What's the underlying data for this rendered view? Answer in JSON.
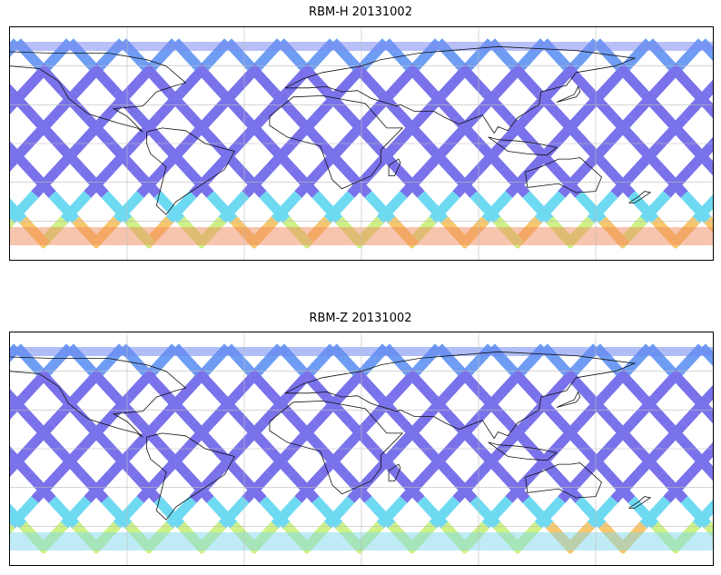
{
  "figure": {
    "panels": [
      {
        "title": "RBM-H 20131002",
        "colormap": "jet",
        "swath_color_hint": "blue-violet in tropics, red/orange near high latitudes"
      },
      {
        "title": "RBM-Z 20131002",
        "colormap": "jet",
        "swath_color_hint": "blue-violet dominant, cyan/yellow/orange patches in south"
      }
    ],
    "map": {
      "projection": "plate carree",
      "coastlines": true,
      "gridlines": true
    },
    "colors": {
      "low": "#6b63e8",
      "mid_low": "#5f93f2",
      "mid": "#5fd6f0",
      "mid_high": "#c8f07a",
      "high": "#f7c25e",
      "very_high": "#e8635b"
    }
  }
}
